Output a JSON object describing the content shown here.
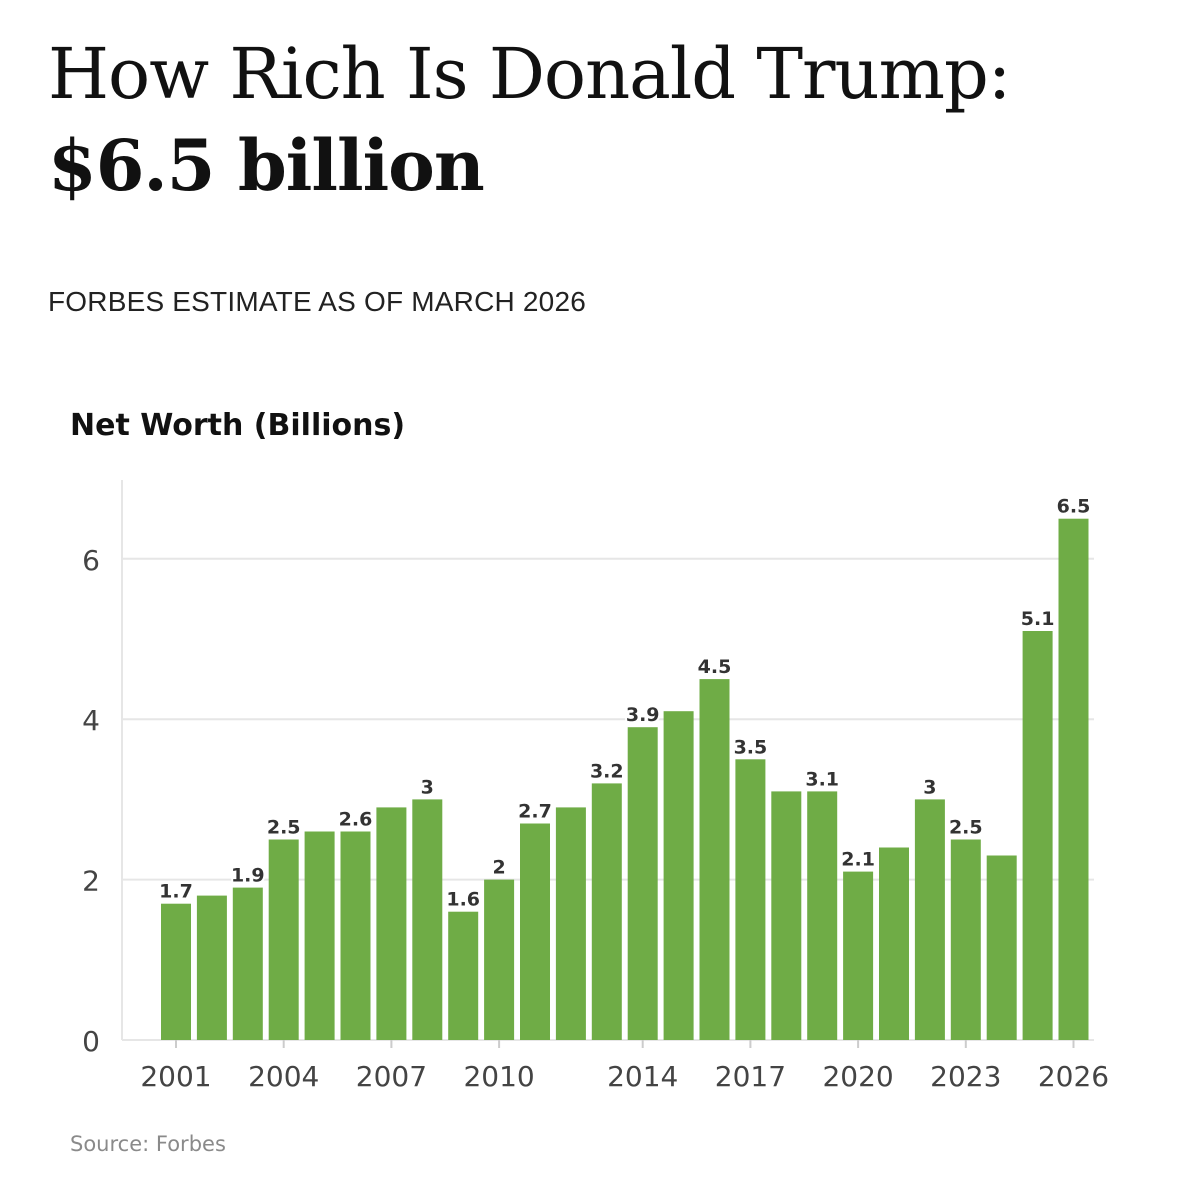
{
  "header": {
    "title": "How Rich Is Donald Trump:",
    "headline_value": "$6.5 billion",
    "subtitle": "FORBES ESTIMATE AS OF MARCH 2026"
  },
  "footer": {
    "source": "Source: Forbes"
  },
  "colors": {
    "bar": "#6fac46",
    "grid": "#e6e6e6",
    "axis_text": "#444444",
    "label_text": "#333333"
  },
  "chart_data": {
    "type": "bar",
    "title": "Net Worth (Billions)",
    "xlabel": "",
    "ylabel": "",
    "categories": [
      "2001",
      "2002",
      "2003",
      "2004",
      "2005",
      "2006",
      "2007",
      "2008",
      "2009",
      "2010",
      "2011",
      "2012",
      "2013",
      "2014",
      "2015",
      "2016",
      "2017",
      "2018",
      "2019",
      "2020",
      "2021",
      "2022",
      "2023",
      "2024",
      "2025",
      "2026"
    ],
    "values": [
      1.7,
      1.8,
      1.9,
      2.5,
      2.6,
      2.6,
      2.9,
      3,
      1.6,
      2,
      2.7,
      2.9,
      3.2,
      3.9,
      4.1,
      4.5,
      3.5,
      3.1,
      3.1,
      2.1,
      2.4,
      3,
      2.5,
      2.3,
      5.1,
      6.5
    ],
    "data_labels": [
      "1.7",
      "",
      "1.9",
      "2.5",
      "",
      "2.6",
      "",
      "3",
      "1.6",
      "2",
      "2.7",
      "",
      "3.2",
      "3.9",
      "",
      "4.5",
      "3.5",
      "",
      "3.1",
      "2.1",
      "",
      "3",
      "2.5",
      "",
      "5.1",
      "6.5"
    ],
    "x_tick_labels": [
      "2001",
      "2004",
      "2007",
      "2010",
      "2014",
      "2017",
      "2020",
      "2023",
      "2026"
    ],
    "y_ticks": [
      "0",
      "2",
      "4",
      "6"
    ],
    "ylim": [
      0,
      7
    ],
    "grid": true,
    "legend": false
  }
}
